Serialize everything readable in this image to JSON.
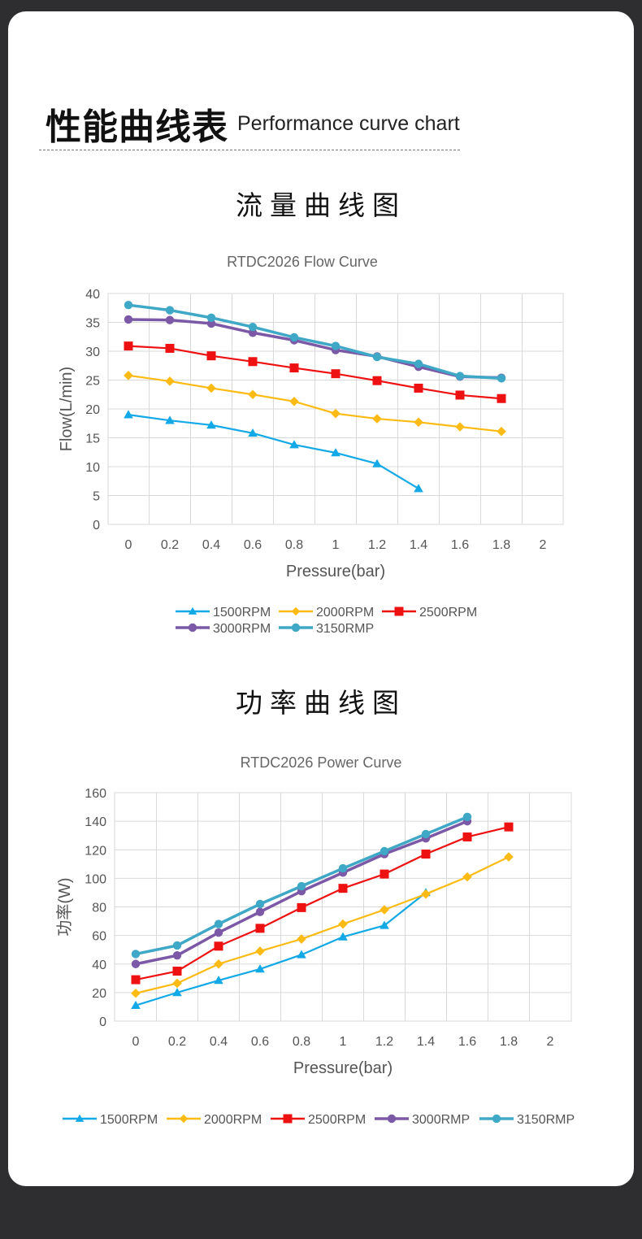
{
  "header": {
    "title": "性能曲线表",
    "subtitle": "Performance curve chart"
  },
  "flow_section": {
    "heading": "流量曲线图"
  },
  "power_section": {
    "heading": "功率曲线图"
  },
  "chart_data": [
    {
      "id": "flow",
      "type": "line",
      "title": "RTDC2026 Flow Curve",
      "xlabel": "Pressure(bar)",
      "ylabel": "Flow(L/min)",
      "xlim": [
        0,
        2
      ],
      "ylim": [
        0,
        40
      ],
      "xticks": [
        "0",
        "0.2",
        "0.4",
        "0.6",
        "0.8",
        "1",
        "1.2",
        "1.4",
        "1.6",
        "1.8",
        "2"
      ],
      "yticks": [
        "0",
        "5",
        "10",
        "15",
        "20",
        "25",
        "30",
        "35",
        "40"
      ],
      "grid": true,
      "legend_position": "bottom",
      "series": [
        {
          "name": "1500RPM",
          "color": "#12a9e6",
          "marker": "triangle",
          "x": [
            0,
            0.2,
            0.4,
            0.6,
            0.8,
            1.0,
            1.2,
            1.4
          ],
          "y": [
            19,
            18,
            17.2,
            15.8,
            13.8,
            12.4,
            10.5,
            6.2
          ]
        },
        {
          "name": "2000RPM",
          "color": "#fcbb14",
          "marker": "diamond",
          "x": [
            0,
            0.2,
            0.4,
            0.6,
            0.8,
            1.0,
            1.2,
            1.4,
            1.6,
            1.8
          ],
          "y": [
            25.8,
            24.8,
            23.6,
            22.5,
            21.3,
            19.2,
            18.3,
            17.7,
            16.9,
            16.1
          ]
        },
        {
          "name": "2500RPM",
          "color": "#ee1111",
          "marker": "square",
          "x": [
            0,
            0.2,
            0.4,
            0.6,
            0.8,
            1.0,
            1.2,
            1.4,
            1.6,
            1.8
          ],
          "y": [
            30.9,
            30.5,
            29.2,
            28.2,
            27.1,
            26.1,
            24.9,
            23.6,
            22.4,
            21.8
          ]
        },
        {
          "name": "3000RPM",
          "color": "#7b59a7",
          "marker": "circle",
          "x": [
            0,
            0.2,
            0.4,
            0.6,
            0.8,
            1.0,
            1.2,
            1.4,
            1.6,
            1.8
          ],
          "y": [
            35.5,
            35.4,
            34.8,
            33.2,
            31.9,
            30.2,
            29.1,
            27.3,
            25.6,
            25.4
          ]
        },
        {
          "name": "3150RMP",
          "color": "#3fa8c6",
          "marker": "circle",
          "x": [
            0,
            0.2,
            0.4,
            0.6,
            0.8,
            1.0,
            1.2,
            1.4,
            1.6,
            1.8
          ],
          "y": [
            38,
            37.1,
            35.8,
            34.2,
            32.4,
            30.9,
            29.0,
            27.8,
            25.7,
            25.3
          ]
        }
      ]
    },
    {
      "id": "power",
      "type": "line",
      "title": "RTDC2026 Power Curve",
      "xlabel": "Pressure(bar)",
      "ylabel": "功率(W)",
      "xlim": [
        0,
        2
      ],
      "ylim": [
        0,
        160
      ],
      "xticks": [
        "0",
        "0.2",
        "0.4",
        "0.6",
        "0.8",
        "1",
        "1.2",
        "1.4",
        "1.6",
        "1.8",
        "2"
      ],
      "yticks": [
        "0",
        "20",
        "40",
        "60",
        "80",
        "100",
        "120",
        "140",
        "160"
      ],
      "grid": true,
      "legend_position": "bottom",
      "series": [
        {
          "name": "1500RPM",
          "color": "#12a9e6",
          "marker": "triangle",
          "x": [
            0,
            0.2,
            0.4,
            0.6,
            0.8,
            1.0,
            1.2,
            1.4
          ],
          "y": [
            11,
            20,
            28.5,
            36.5,
            46.5,
            59,
            67,
            90
          ]
        },
        {
          "name": "2000RPM",
          "color": "#fcbb14",
          "marker": "diamond",
          "x": [
            0,
            0.2,
            0.4,
            0.6,
            0.8,
            1.0,
            1.2,
            1.4,
            1.6,
            1.8
          ],
          "y": [
            19.5,
            26.5,
            40,
            49,
            57.5,
            68,
            78,
            89,
            101,
            115
          ]
        },
        {
          "name": "2500RPM",
          "color": "#ee1111",
          "marker": "square",
          "x": [
            0,
            0.2,
            0.4,
            0.6,
            0.8,
            1.0,
            1.2,
            1.4,
            1.6,
            1.8
          ],
          "y": [
            29,
            35,
            52.5,
            65,
            79.5,
            93,
            103,
            117,
            129,
            136
          ]
        },
        {
          "name": "3000RMP",
          "color": "#7b59a7",
          "marker": "circle",
          "x": [
            0,
            0.2,
            0.4,
            0.6,
            0.8,
            1.0,
            1.2,
            1.4,
            1.6
          ],
          "y": [
            40,
            46,
            62,
            76.5,
            91,
            104,
            117,
            128,
            140
          ]
        },
        {
          "name": "3150RMP",
          "color": "#3fa8c6",
          "marker": "circle",
          "x": [
            0,
            0.2,
            0.4,
            0.6,
            0.8,
            1.0,
            1.2,
            1.4,
            1.6
          ],
          "y": [
            47,
            53,
            68,
            82,
            94.5,
            107,
            119,
            131,
            143
          ]
        }
      ]
    }
  ]
}
